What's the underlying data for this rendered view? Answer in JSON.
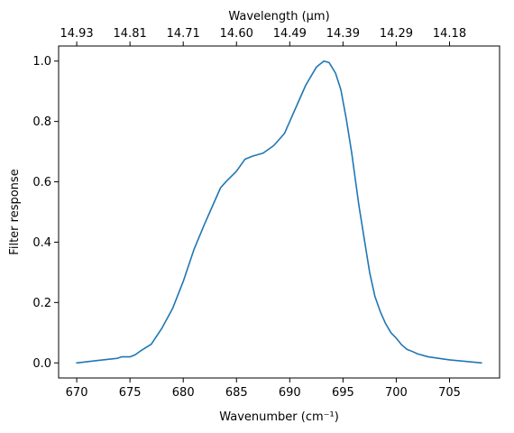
{
  "chart_data": {
    "type": "line",
    "xlabel": "Wavenumber (cm⁻¹)",
    "ylabel": "Filter response",
    "top_xlabel": "Wavelength (μm)",
    "xlim": [
      668.3,
      709.7
    ],
    "ylim": [
      -0.05,
      1.05
    ],
    "x_ticks": [
      670,
      675,
      680,
      685,
      690,
      695,
      700,
      705
    ],
    "x_tick_labels": [
      "670",
      "675",
      "680",
      "685",
      "690",
      "695",
      "700",
      "705"
    ],
    "y_ticks": [
      0.0,
      0.2,
      0.4,
      0.6,
      0.8,
      1.0
    ],
    "y_tick_labels": [
      "0.0",
      "0.2",
      "0.4",
      "0.6",
      "0.8",
      "1.0"
    ],
    "top_tick_labels": [
      "14.93",
      "14.81",
      "14.71",
      "14.60",
      "14.49",
      "14.39",
      "14.29",
      "14.18"
    ],
    "grid": false,
    "line_color": "#1f77b4",
    "series": [
      {
        "x": [
          670,
          672,
          673.8,
          674.2,
          675,
          675.5,
          676,
          677,
          678,
          679,
          680,
          681,
          682,
          682.5,
          683,
          683.5,
          684,
          685,
          685.8,
          686.5,
          687.5,
          688.5,
          689.5,
          690.5,
          691.5,
          692.5,
          693.2,
          693.7,
          694.3,
          694.8,
          695.3,
          695.8,
          696.5,
          697,
          697.5,
          698,
          698.5,
          699,
          699.5,
          700,
          700.5,
          701,
          701.5,
          702,
          703,
          705,
          708
        ],
        "y": [
          0.0,
          0.008,
          0.015,
          0.02,
          0.02,
          0.027,
          0.04,
          0.062,
          0.115,
          0.18,
          0.27,
          0.375,
          0.46,
          0.5,
          0.54,
          0.58,
          0.6,
          0.635,
          0.675,
          0.685,
          0.695,
          0.72,
          0.76,
          0.84,
          0.92,
          0.98,
          1.0,
          0.995,
          0.96,
          0.905,
          0.81,
          0.7,
          0.52,
          0.41,
          0.3,
          0.22,
          0.17,
          0.13,
          0.1,
          0.082,
          0.06,
          0.045,
          0.038,
          0.03,
          0.02,
          0.01,
          0.0
        ]
      }
    ]
  }
}
